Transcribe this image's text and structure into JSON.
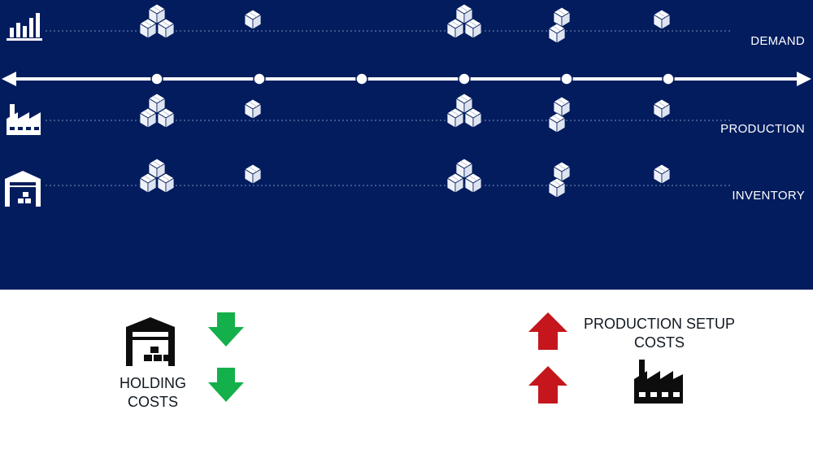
{
  "colors": {
    "panel": "#021c5e",
    "timeline": "#ffffff",
    "guide": "#7f8fb8",
    "arrow_down": "#13b04b",
    "arrow_up": "#c4161c",
    "icon_dark": "#0d0d0d"
  },
  "timeline": {
    "periods": 6,
    "arrow_style": "double-headed"
  },
  "rows": [
    {
      "id": "demand",
      "label": "DEMAND",
      "icon": "bar-chart-icon",
      "quantities": [
        3,
        1,
        0,
        3,
        2,
        1
      ]
    },
    {
      "id": "production",
      "label": "PRODUCTION",
      "icon": "factory-icon",
      "quantities": [
        3,
        1,
        0,
        3,
        2,
        1
      ]
    },
    {
      "id": "inventory",
      "label": "INVENTORY",
      "icon": "warehouse-icon",
      "quantities": [
        3,
        1,
        0,
        3,
        2,
        1
      ]
    }
  ],
  "costs": {
    "holding": {
      "label_lines": [
        "HOLDING",
        "COSTS"
      ],
      "icon": "warehouse-icon",
      "arrow_direction": "down",
      "arrow_count": 2
    },
    "setup": {
      "label_lines": [
        "PRODUCTION SETUP",
        "COSTS"
      ],
      "icon": "factory-icon",
      "arrow_direction": "up",
      "arrow_count": 2
    }
  }
}
